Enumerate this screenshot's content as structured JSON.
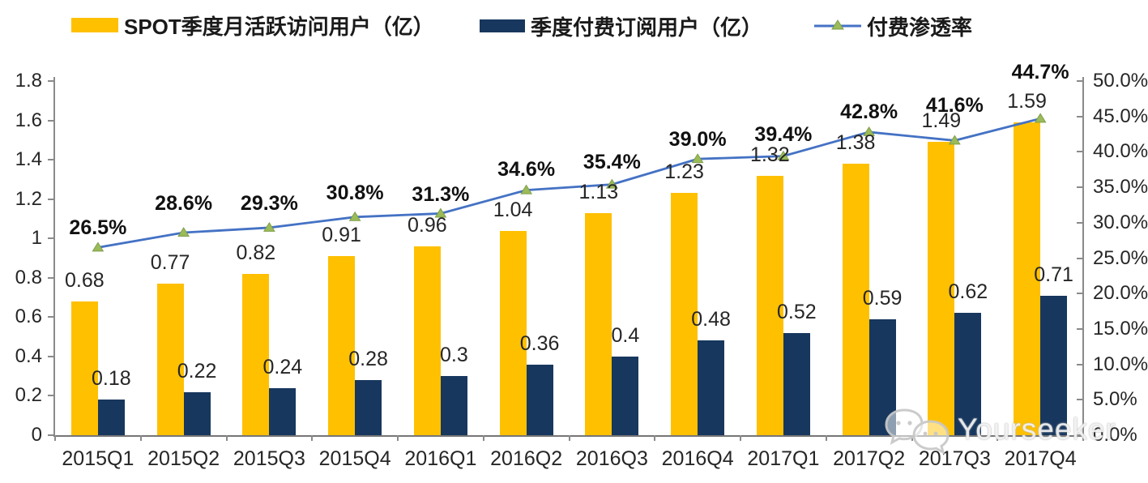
{
  "legend": [
    {
      "label": "SPOT季度月活跃访问用户（亿）",
      "type": "bar",
      "color": "#FFC000"
    },
    {
      "label": "季度付费订阅用户（亿）",
      "type": "bar",
      "color": "#17375E"
    },
    {
      "label": "付费渗透率",
      "type": "line",
      "color": "#4472C4",
      "marker_color": "#9BBB59"
    }
  ],
  "watermark": {
    "text": "Yourseeker",
    "icon": "wechat-chat-bubbles-icon"
  },
  "chart_data": {
    "type": "bar",
    "subtype": "grouped-bars-with-line-combo",
    "categories": [
      "2015Q1",
      "2015Q2",
      "2015Q3",
      "2015Q4",
      "2016Q1",
      "2016Q2",
      "2016Q3",
      "2016Q4",
      "2017Q1",
      "2017Q2",
      "2017Q3",
      "2017Q4"
    ],
    "series": [
      {
        "name": "SPOT季度月活跃访问用户（亿）",
        "type": "bar",
        "axis": "left",
        "color": "#FFC000",
        "values": [
          0.68,
          0.77,
          0.82,
          0.91,
          0.96,
          1.04,
          1.13,
          1.23,
          1.32,
          1.38,
          1.49,
          1.59
        ]
      },
      {
        "name": "季度付费订阅用户（亿）",
        "type": "bar",
        "axis": "left",
        "color": "#17375E",
        "values": [
          0.18,
          0.22,
          0.24,
          0.28,
          0.3,
          0.36,
          0.4,
          0.48,
          0.52,
          0.59,
          0.62,
          0.71
        ]
      },
      {
        "name": "付费渗透率",
        "type": "line",
        "axis": "right",
        "color": "#4472C4",
        "marker": "triangle",
        "marker_color": "#9BBB59",
        "values": [
          26.5,
          28.6,
          29.3,
          30.8,
          31.3,
          34.6,
          35.4,
          39.0,
          39.4,
          42.8,
          41.6,
          44.7
        ],
        "labels": [
          "26.5%",
          "28.6%",
          "29.3%",
          "30.8%",
          "31.3%",
          "34.6%",
          "35.4%",
          "39.0%",
          "39.4%",
          "42.8%",
          "41.6%",
          "44.7%"
        ]
      }
    ],
    "left_axis": {
      "min": 0,
      "max": 1.8,
      "step": 0.2,
      "tick_labels": [
        "0",
        "0.2",
        "0.4",
        "0.6",
        "0.8",
        "1",
        "1.2",
        "1.4",
        "1.6",
        "1.8"
      ]
    },
    "right_axis": {
      "min": 0,
      "max": 50,
      "step": 5,
      "tick_labels": [
        "0.0%",
        "5.0%",
        "10.0%",
        "15.0%",
        "20.0%",
        "25.0%",
        "30.0%",
        "35.0%",
        "40.0%",
        "45.0%",
        "50.0%"
      ]
    },
    "grid": false,
    "legend_position": "top",
    "colors": {
      "axis": "#8a8a8a",
      "text": "#262626"
    }
  }
}
